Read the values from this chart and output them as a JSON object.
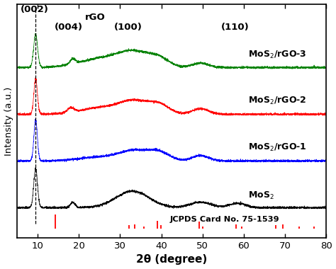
{
  "xlabel": "2θ (degree)",
  "ylabel": "Intensity (a.u.)",
  "x_ticks": [
    10,
    20,
    30,
    40,
    50,
    60,
    70,
    80
  ],
  "dashed_line_x": 9.5,
  "background_color": "white",
  "jcpds_peaks": [
    14.3,
    32.2,
    33.6,
    35.8,
    39.0,
    39.9,
    49.2,
    50.1,
    58.2,
    59.5,
    67.8,
    69.5,
    73.5,
    77.0
  ],
  "jcpds_heights": [
    0.8,
    0.18,
    0.22,
    0.12,
    0.45,
    0.18,
    0.38,
    0.12,
    0.22,
    0.12,
    0.18,
    0.22,
    0.1,
    0.12
  ]
}
